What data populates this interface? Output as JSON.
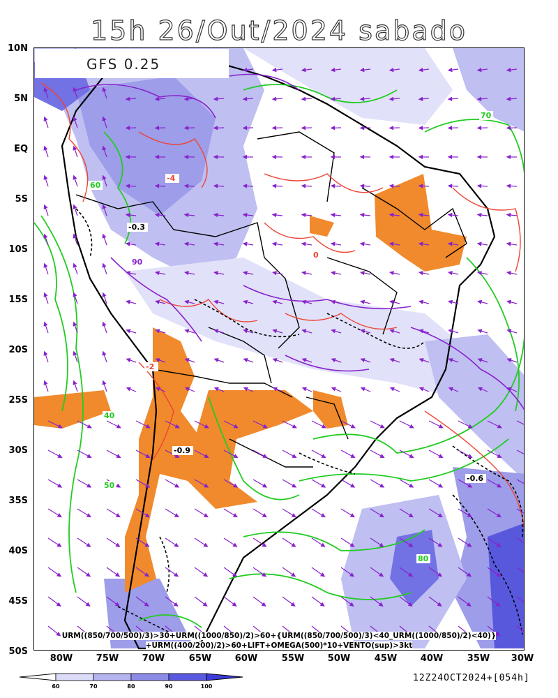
{
  "title": "15h 26/Out/2024 sabado",
  "model": "GFS 0.25",
  "lat_labels": [
    "10N",
    "5N",
    "EQ",
    "5S",
    "10S",
    "15S",
    "20S",
    "25S",
    "30S",
    "35S",
    "40S",
    "45S",
    "50S"
  ],
  "lon_labels": [
    "80W",
    "75W",
    "70W",
    "65W",
    "60W",
    "55W",
    "50W",
    "45W",
    "40W",
    "35W",
    "30W"
  ],
  "formula_line1": "URM((850/700/500)/3)>30+URM((1000/850)/2)>60+{URM((850/700/500)/3)<40_URM((1000/850)/2)<40)}",
  "formula_line2": "+URM((400/200)/2)>60+LIFT+OMEGA(500)*10+VENTO(sup)>3kt",
  "colorbar": {
    "ticks": [
      "60",
      "70",
      "80",
      "90",
      "100"
    ],
    "colors": [
      "#dcdcf8",
      "#b4b4f0",
      "#8c8ce6",
      "#5a5ae0",
      "#3c3cd8"
    ]
  },
  "run_label": "12Z24OCT2024+[054h]",
  "contour_labels": [
    "-2",
    "-4",
    "0",
    "-0.3",
    "-0.6",
    "-0.9",
    "40",
    "50",
    "60",
    "70",
    "80",
    "90"
  ],
  "colors": {
    "dry_fill": "#f08a2c",
    "humid_contour": "#22cc22",
    "omega_contour": "#ee4433",
    "upper_contour": "#8822cc",
    "wind_vector": "#8822cc",
    "boundaries": "#000000"
  }
}
